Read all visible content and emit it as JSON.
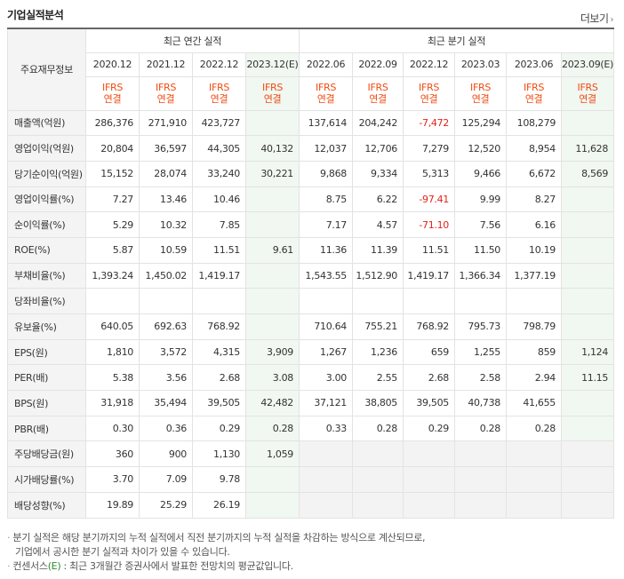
{
  "title": "기업실적분석",
  "more_label": "더보기",
  "more_chevron": "›",
  "header": {
    "label_col": "주요재무정보",
    "annual_group": "최근 연간 실적",
    "quarter_group": "최근 분기 실적",
    "annual_periods": [
      "2020.12",
      "2021.12",
      "2022.12",
      "2023.12(E)"
    ],
    "quarter_periods": [
      "2022.06",
      "2022.09",
      "2022.12",
      "2023.03",
      "2023.06",
      "2023.09(E)"
    ],
    "std_line1": "IFRS",
    "std_line2": "연결"
  },
  "rows": [
    {
      "label": "매출액(억원)",
      "annual": [
        "286,376",
        "271,910",
        "423,727",
        ""
      ],
      "quarter": [
        "137,614",
        "204,242",
        "-7,472",
        "125,294",
        "108,279",
        ""
      ]
    },
    {
      "label": "영업이익(억원)",
      "annual": [
        "20,804",
        "36,597",
        "44,305",
        "40,132"
      ],
      "quarter": [
        "12,037",
        "12,706",
        "7,279",
        "12,520",
        "8,954",
        "11,628"
      ]
    },
    {
      "label": "당기순이익(억원)",
      "annual": [
        "15,152",
        "28,074",
        "33,240",
        "30,221"
      ],
      "quarter": [
        "9,868",
        "9,334",
        "5,313",
        "9,466",
        "6,672",
        "8,569"
      ]
    },
    {
      "label": "영업이익률(%)",
      "annual": [
        "7.27",
        "13.46",
        "10.46",
        ""
      ],
      "quarter": [
        "8.75",
        "6.22",
        "-97.41",
        "9.99",
        "8.27",
        ""
      ]
    },
    {
      "label": "순이익률(%)",
      "annual": [
        "5.29",
        "10.32",
        "7.85",
        ""
      ],
      "quarter": [
        "7.17",
        "4.57",
        "-71.10",
        "7.56",
        "6.16",
        ""
      ]
    },
    {
      "label": "ROE(%)",
      "annual": [
        "5.87",
        "10.59",
        "11.51",
        "9.61"
      ],
      "quarter": [
        "11.36",
        "11.39",
        "11.51",
        "11.50",
        "10.19",
        ""
      ]
    },
    {
      "label": "부채비율(%)",
      "annual": [
        "1,393.24",
        "1,450.02",
        "1,419.17",
        ""
      ],
      "quarter": [
        "1,543.55",
        "1,512.90",
        "1,419.17",
        "1,366.34",
        "1,377.19",
        ""
      ]
    },
    {
      "label": "당좌비율(%)",
      "annual": [
        "",
        "",
        "",
        ""
      ],
      "quarter": [
        "",
        "",
        "",
        "",
        "",
        ""
      ]
    },
    {
      "label": "유보율(%)",
      "annual": [
        "640.05",
        "692.63",
        "768.92",
        ""
      ],
      "quarter": [
        "710.64",
        "755.21",
        "768.92",
        "795.73",
        "798.79",
        ""
      ]
    },
    {
      "label": "EPS(원)",
      "annual": [
        "1,810",
        "3,572",
        "4,315",
        "3,909"
      ],
      "quarter": [
        "1,267",
        "1,236",
        "659",
        "1,255",
        "859",
        "1,124"
      ]
    },
    {
      "label": "PER(배)",
      "annual": [
        "5.38",
        "3.56",
        "2.68",
        "3.08"
      ],
      "quarter": [
        "3.00",
        "2.55",
        "2.68",
        "2.58",
        "2.94",
        "11.15"
      ]
    },
    {
      "label": "BPS(원)",
      "annual": [
        "31,918",
        "35,494",
        "39,505",
        "42,482"
      ],
      "quarter": [
        "37,121",
        "38,805",
        "39,505",
        "40,738",
        "41,655",
        ""
      ]
    },
    {
      "label": "PBR(배)",
      "annual": [
        "0.30",
        "0.36",
        "0.29",
        "0.28"
      ],
      "quarter": [
        "0.33",
        "0.28",
        "0.29",
        "0.28",
        "0.28",
        ""
      ]
    },
    {
      "label": "주당배당금(원)",
      "annual": [
        "360",
        "900",
        "1,130",
        "1,059"
      ],
      "quarter": [
        "",
        "",
        "",
        "",
        "",
        ""
      ]
    },
    {
      "label": "시가배당률(%)",
      "annual": [
        "3.70",
        "7.09",
        "9.78",
        ""
      ],
      "quarter": [
        "",
        "",
        "",
        "",
        "",
        ""
      ]
    },
    {
      "label": "배당성향(%)",
      "annual": [
        "19.89",
        "25.29",
        "26.19",
        ""
      ],
      "quarter": [
        "",
        "",
        "",
        "",
        "",
        ""
      ]
    }
  ],
  "notes": {
    "line1": "분기 실적은 해당 분기까지의 누적 실적에서 직전 분기까지의 누적 실적을 차감하는 방식으로 계산되므로,",
    "line2": "기업에서 공시한 분기 실적과 차이가 있을 수 있습니다.",
    "line3_prefix": "컨센서스",
    "line3_e": "(E)",
    "line3_suffix": ": 최근 3개월간 증권사에서 발표한 전망치의 평균값입니다."
  }
}
